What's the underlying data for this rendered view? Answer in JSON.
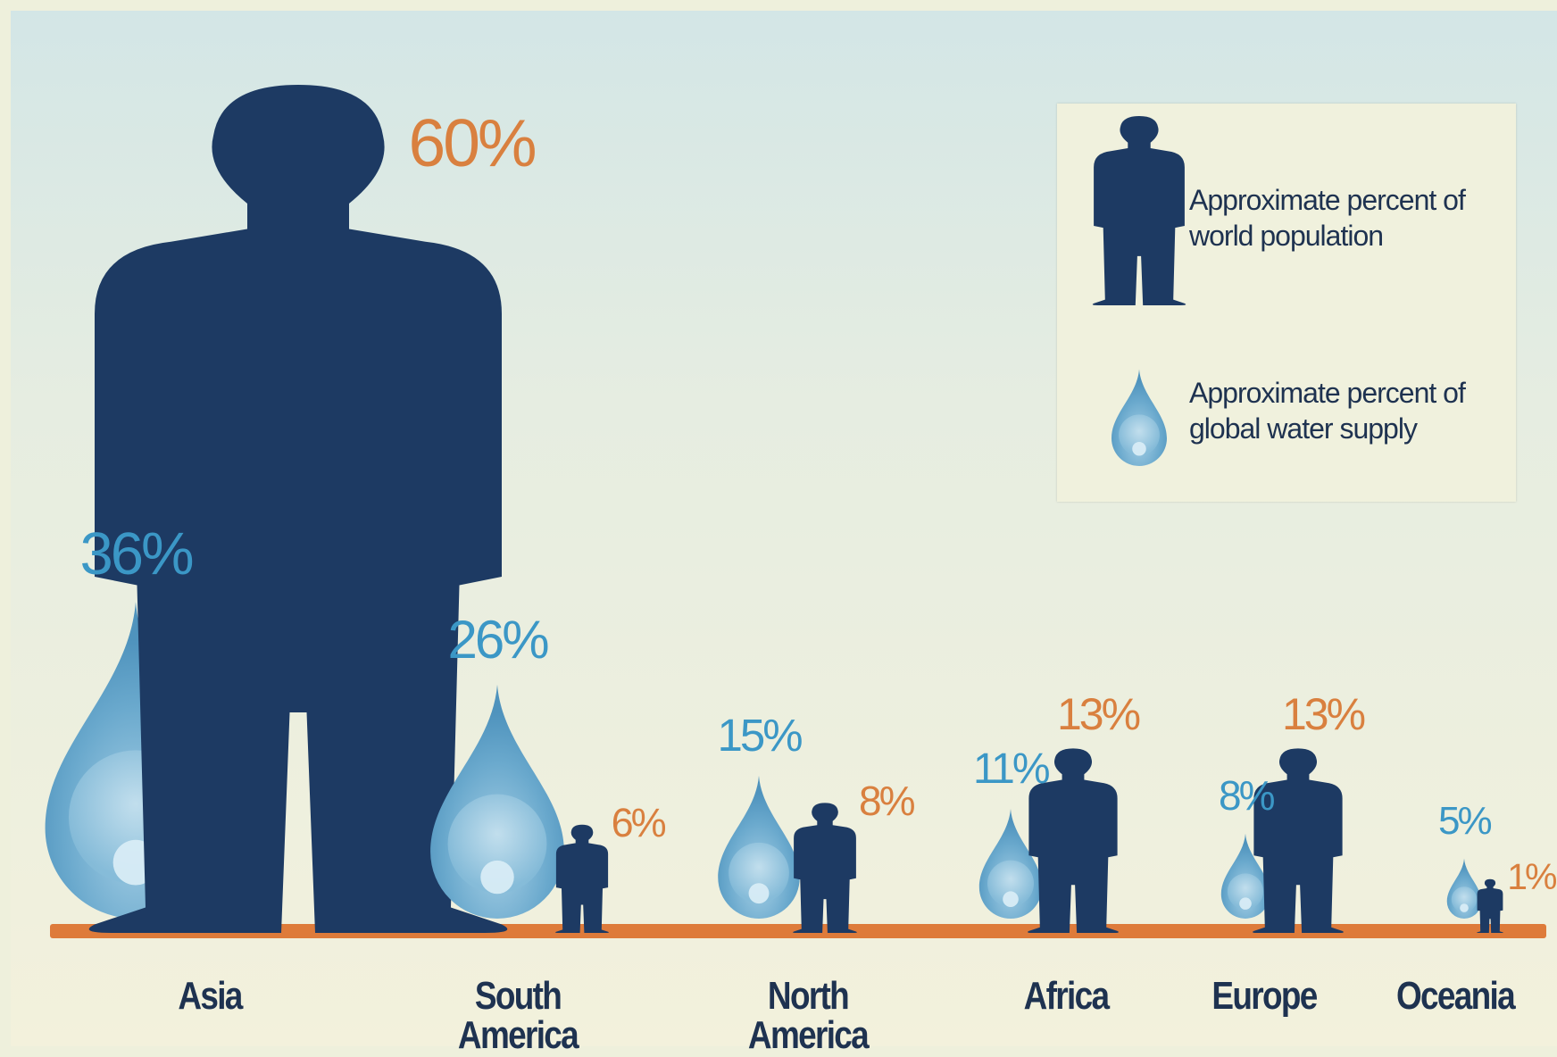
{
  "colors": {
    "population": "#1d3a63",
    "water": "#5fa0c6",
    "water_label": "#3b97c6",
    "population_label": "#d9803f",
    "baseline": "#de7b3a",
    "region_label": "#1e3250"
  },
  "legend": {
    "population_text": "Approximate percent of world population",
    "water_text": "Approximate percent of global water supply"
  },
  "chart_data": {
    "type": "bar",
    "categories": [
      "Asia",
      "South America",
      "North America",
      "Africa",
      "Europe",
      "Oceania"
    ],
    "series": [
      {
        "key": "water",
        "icon": "water-drop-icon",
        "values": [
          36,
          26,
          15,
          11,
          8,
          5
        ]
      },
      {
        "key": "population",
        "icon": "person-silhouette-icon",
        "values": [
          60,
          6,
          8,
          13,
          13,
          1
        ]
      }
    ],
    "labels": {
      "water": [
        "36%",
        "26%",
        "15%",
        "11%",
        "8%",
        "5%"
      ],
      "population": [
        "60%",
        "6%",
        "8%",
        "13%",
        "13%",
        "1%"
      ]
    },
    "legend_position": "top-right"
  }
}
